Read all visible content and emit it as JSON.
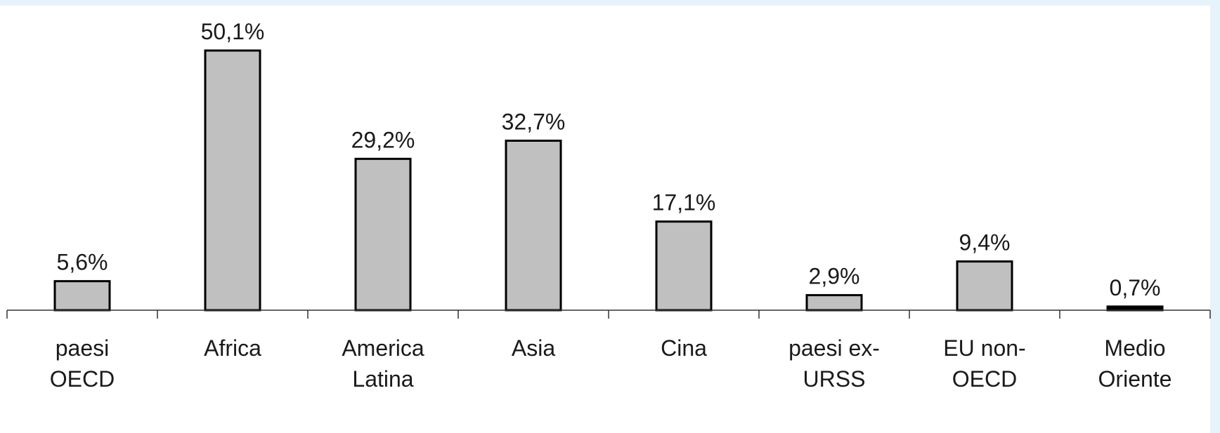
{
  "chart_data": {
    "type": "bar",
    "categories": [
      [
        "paesi",
        "OECD"
      ],
      [
        "Africa"
      ],
      [
        "America",
        "Latina"
      ],
      [
        "Asia"
      ],
      [
        "Cina"
      ],
      [
        "paesi ex-",
        "URSS"
      ],
      [
        "EU non-",
        "OECD"
      ],
      [
        "Medio",
        "Oriente"
      ]
    ],
    "values": [
      5.6,
      50.1,
      29.2,
      32.7,
      17.1,
      2.9,
      9.4,
      0.7
    ],
    "data_labels": [
      "5,6%",
      "50,1%",
      "29,2%",
      "32,7%",
      "17,1%",
      "2,9%",
      "9,4%",
      "0,7%"
    ],
    "unit": "%",
    "title": "",
    "xlabel": "",
    "ylabel": "",
    "ylim": [
      0,
      50.1
    ],
    "grid": false,
    "legend": "none",
    "colors": {
      "bar_fill": "#c0c0c0",
      "bar_stroke": "#000000",
      "highlight_fill": "#000000",
      "axis": "#333333",
      "background": "#ffffff",
      "frame_band": "#e6f3fb"
    }
  }
}
